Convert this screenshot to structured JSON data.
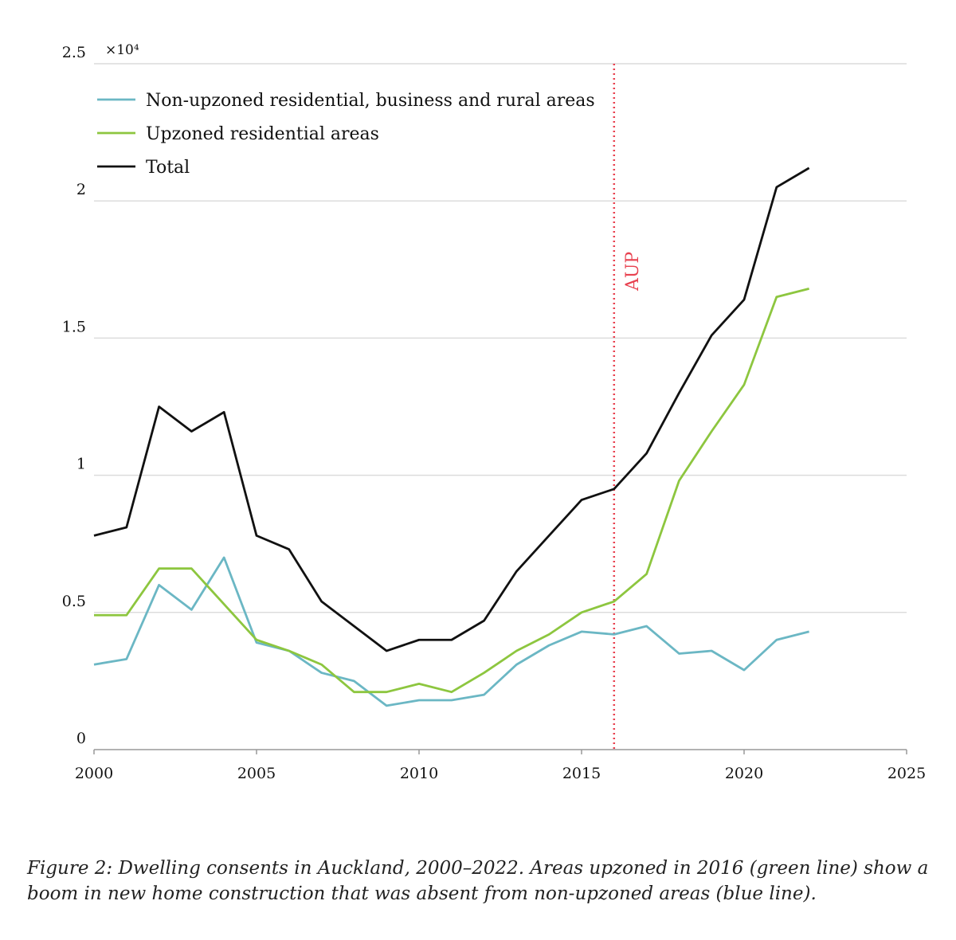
{
  "chart_data": {
    "type": "line",
    "y_multiplier": "×10⁴",
    "x": [
      2000,
      2001,
      2002,
      2003,
      2004,
      2005,
      2006,
      2007,
      2008,
      2009,
      2010,
      2011,
      2012,
      2013,
      2014,
      2015,
      2016,
      2017,
      2018,
      2019,
      2020,
      2021,
      2022
    ],
    "series": [
      {
        "name": "Non-upzoned residential, business and rural areas",
        "color": "#6bb7c4",
        "values": [
          0.31,
          0.33,
          0.6,
          0.51,
          0.7,
          0.39,
          0.36,
          0.28,
          0.25,
          0.16,
          0.18,
          0.18,
          0.2,
          0.31,
          0.38,
          0.43,
          0.42,
          0.45,
          0.35,
          0.36,
          0.29,
          0.4,
          0.43
        ]
      },
      {
        "name": "Upzoned residential areas",
        "color": "#8dc63f",
        "values": [
          0.49,
          0.49,
          0.66,
          0.66,
          0.53,
          0.4,
          0.36,
          0.31,
          0.21,
          0.21,
          0.24,
          0.21,
          0.28,
          0.36,
          0.42,
          0.5,
          0.54,
          0.64,
          0.98,
          1.16,
          1.33,
          1.65,
          1.68
        ]
      },
      {
        "name": "Total",
        "color": "#111111",
        "values": [
          0.78,
          0.81,
          1.25,
          1.16,
          1.23,
          0.78,
          0.73,
          0.54,
          0.45,
          0.36,
          0.4,
          0.4,
          0.47,
          0.65,
          0.78,
          0.91,
          0.95,
          1.08,
          1.3,
          1.51,
          1.64,
          2.05,
          2.12
        ]
      }
    ],
    "xlim": [
      2000,
      2025
    ],
    "xticks": [
      2000,
      2005,
      2010,
      2015,
      2020,
      2025
    ],
    "ylim": [
      0,
      2.5
    ],
    "yticks": [
      0,
      0.5,
      1,
      1.5,
      2,
      2.5
    ],
    "grid": true,
    "legend": "upper left",
    "annotation": {
      "x": 2016,
      "label": "AUP",
      "color": "#e8414f"
    },
    "caption": [
      "Figure 2: Dwelling consents in Auckland, 2000–2022. Areas upzoned in 2016 (green line) show a",
      "boom in new home construction that was absent from non-upzoned areas (blue line)."
    ]
  }
}
